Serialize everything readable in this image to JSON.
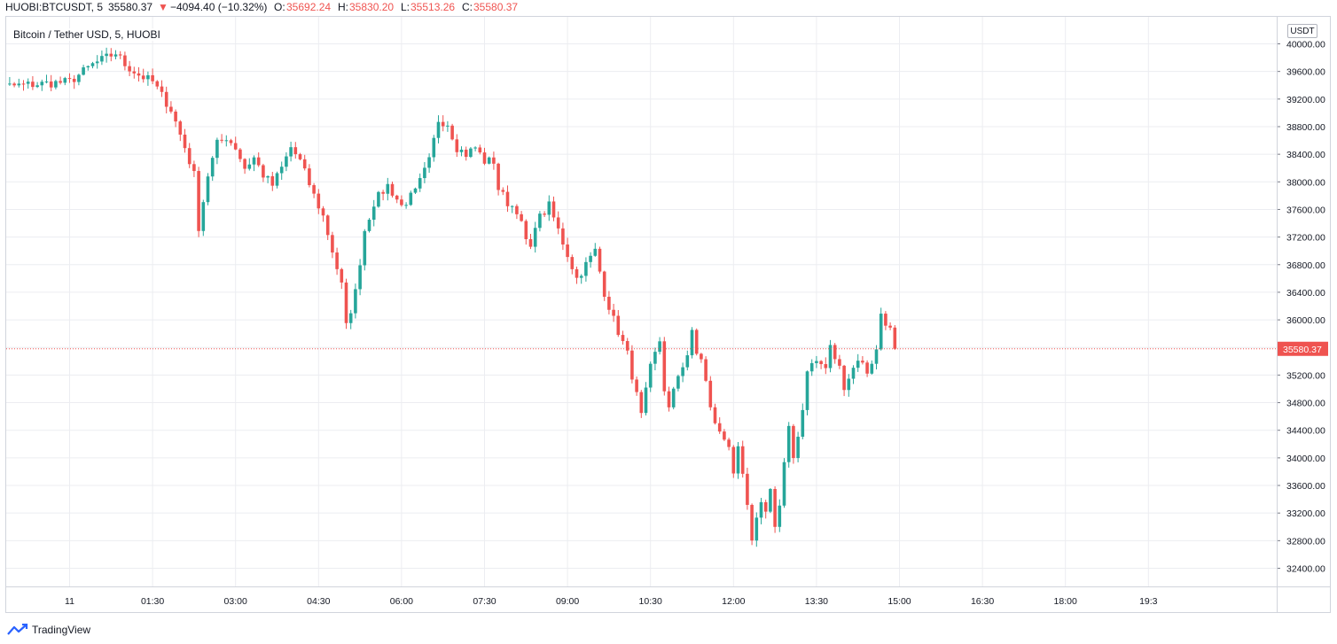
{
  "header": {
    "symbol": "HUOBI:BTCUSDT, 5",
    "last": "35580.37",
    "arrow": "▼",
    "change": "−4094.40 (−10.32%)",
    "o_label": "O:",
    "o_value": "35692.24",
    "h_label": "H:",
    "h_value": "35830.20",
    "l_label": "L:",
    "l_value": "35513.26",
    "c_label": "C:",
    "c_value": "35580.37"
  },
  "legend": {
    "title": "Bitcoin / Tether USD, 5, HUOBI"
  },
  "currency_button": "USDT",
  "brand": {
    "name": "TradingView",
    "icon": "tradingview-logo-icon"
  },
  "colors": {
    "up": "#26a69a",
    "down": "#ef5350",
    "grid": "#ecedf1",
    "axis_text": "#131722",
    "price_label_bg": "#ef5350"
  },
  "chart_data": {
    "type": "candlestick",
    "title": "Bitcoin / Tether USD, 5, HUOBI",
    "ylim": [
      32000,
      40200
    ],
    "y_ticks": [
      "40000.00",
      "39600.00",
      "39200.00",
      "38800.00",
      "38400.00",
      "38000.00",
      "37600.00",
      "37200.00",
      "36800.00",
      "36400.00",
      "36000.00",
      "35600.00",
      "35200.00",
      "34800.00",
      "34400.00",
      "34000.00",
      "33600.00",
      "33200.00",
      "32800.00",
      "32400.00"
    ],
    "x_ticks": [
      "11",
      "01:30",
      "03:00",
      "04:30",
      "06:00",
      "07:30",
      "09:00",
      "10:30",
      "12:00",
      "13:30",
      "15:00",
      "16:30",
      "18:00",
      "19:3"
    ],
    "current_price": "35580.37",
    "grid": true,
    "price_path": [
      [
        -21,
        39350
      ],
      [
        0,
        39450
      ],
      [
        5,
        39700
      ],
      [
        8,
        39800
      ],
      [
        10,
        39870
      ],
      [
        12,
        39700
      ],
      [
        15,
        39550
      ],
      [
        18,
        39450
      ],
      [
        22,
        39050
      ],
      [
        25,
        38500
      ],
      [
        27,
        38100
      ],
      [
        28,
        37350
      ],
      [
        30,
        38100
      ],
      [
        32,
        38550
      ],
      [
        34,
        38650
      ],
      [
        36,
        38500
      ],
      [
        38,
        38200
      ],
      [
        40,
        38350
      ],
      [
        42,
        38100
      ],
      [
        44,
        37950
      ],
      [
        46,
        38200
      ],
      [
        48,
        38500
      ],
      [
        50,
        38300
      ],
      [
        53,
        37800
      ],
      [
        55,
        37500
      ],
      [
        57,
        37000
      ],
      [
        59,
        36500
      ],
      [
        60,
        35900
      ],
      [
        62,
        36400
      ],
      [
        64,
        37300
      ],
      [
        66,
        37700
      ],
      [
        69,
        37950
      ],
      [
        72,
        37650
      ],
      [
        75,
        37850
      ],
      [
        78,
        38300
      ],
      [
        80,
        38900
      ],
      [
        82,
        38850
      ],
      [
        84,
        38500
      ],
      [
        86,
        38400
      ],
      [
        88,
        38500
      ],
      [
        90,
        38300
      ],
      [
        92,
        38300
      ],
      [
        93,
        37900
      ],
      [
        95,
        37700
      ],
      [
        97,
        37600
      ],
      [
        99,
        37150
      ],
      [
        100,
        37000
      ],
      [
        101,
        37400
      ],
      [
        104,
        37650
      ],
      [
        106,
        37300
      ],
      [
        108,
        36950
      ],
      [
        110,
        36600
      ],
      [
        112,
        36800
      ],
      [
        114,
        37000
      ],
      [
        116,
        36400
      ],
      [
        118,
        36000
      ],
      [
        121,
        35500
      ],
      [
        123,
        34900
      ],
      [
        124,
        34600
      ],
      [
        126,
        35300
      ],
      [
        128,
        35700
      ],
      [
        129,
        35000
      ],
      [
        130,
        34700
      ],
      [
        132,
        35200
      ],
      [
        134,
        35500
      ],
      [
        135,
        35800
      ],
      [
        136,
        35500
      ],
      [
        137,
        35450
      ],
      [
        138,
        35100
      ],
      [
        139,
        34700
      ],
      [
        141,
        34350
      ],
      [
        143,
        34200
      ],
      [
        144,
        33800
      ],
      [
        145,
        34100
      ],
      [
        147,
        33300
      ],
      [
        148,
        32750
      ],
      [
        150,
        33400
      ],
      [
        151,
        33200
      ],
      [
        152,
        33600
      ],
      [
        153,
        33000
      ],
      [
        154,
        33300
      ],
      [
        155,
        33900
      ],
      [
        156,
        34400
      ],
      [
        157,
        34000
      ],
      [
        159,
        34700
      ],
      [
        160,
        35300
      ],
      [
        162,
        35400
      ],
      [
        164,
        35300
      ],
      [
        165,
        35600
      ],
      [
        167,
        35300
      ],
      [
        168,
        35050
      ],
      [
        170,
        35300
      ],
      [
        171,
        35450
      ],
      [
        173,
        35250
      ],
      [
        175,
        35550
      ],
      [
        176,
        36100
      ],
      [
        178,
        35850
      ],
      [
        179,
        35580
      ]
    ]
  }
}
